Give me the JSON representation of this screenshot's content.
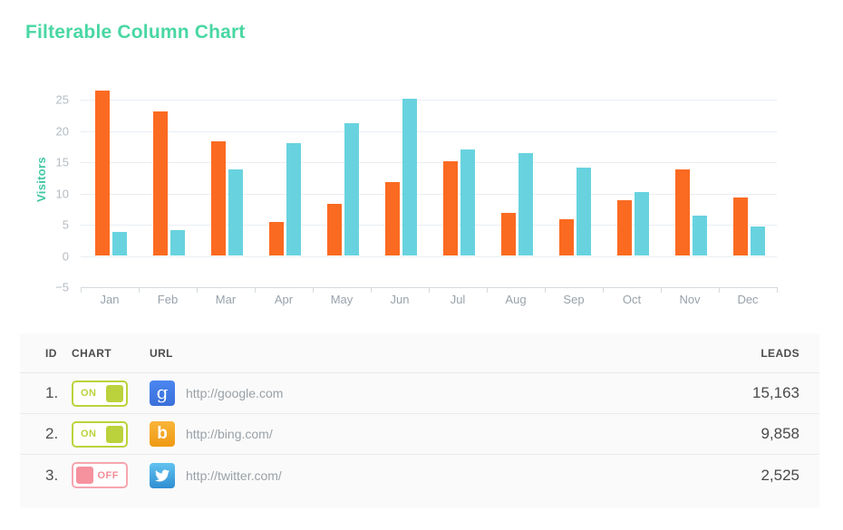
{
  "title": "Filterable Column Chart",
  "colors": {
    "title_accent": "#49d7a3",
    "series_google": "#fb6a21",
    "series_bing": "#68d3df",
    "toggle_on": "#bcd23c",
    "toggle_off": "#f5929e"
  },
  "chart_data": {
    "type": "bar",
    "title": "",
    "xlabel": "",
    "ylabel": "Visitors",
    "categories": [
      "Jan",
      "Feb",
      "Mar",
      "Apr",
      "May",
      "Jun",
      "Jul",
      "Aug",
      "Sep",
      "Oct",
      "Nov",
      "Dec"
    ],
    "series": [
      {
        "key": "google",
        "name": "http://google.com",
        "color": "#fb6a21",
        "values": [
          26.4,
          23.1,
          18.3,
          5.5,
          8.4,
          11.8,
          15.2,
          6.9,
          5.8,
          8.9,
          13.8,
          9.4
        ]
      },
      {
        "key": "bing",
        "name": "http://bing.com/",
        "color": "#68d3df",
        "values": [
          3.8,
          4.1,
          13.9,
          18.0,
          21.3,
          25.1,
          17.0,
          16.5,
          14.1,
          10.2,
          6.5,
          4.7
        ]
      }
    ],
    "ylim": [
      -5,
      27.5
    ],
    "yticks": [
      25,
      20,
      15,
      10,
      5,
      0,
      -5
    ],
    "grid": true,
    "legend": "none"
  },
  "table": {
    "headers": [
      "ID",
      "CHART",
      "URL",
      "LEADS"
    ],
    "rows": [
      {
        "id": "1.",
        "toggle_label": "ON",
        "toggle_state": "on",
        "icon": "google-icon",
        "url": "http://google.com",
        "leads": "15,163"
      },
      {
        "id": "2.",
        "toggle_label": "ON",
        "toggle_state": "on",
        "icon": "bing-icon",
        "url": "http://bing.com/",
        "leads": "9,858"
      },
      {
        "id": "3.",
        "toggle_label": "OFF",
        "toggle_state": "off",
        "icon": "twitter-icon",
        "url": "http://twitter.com/",
        "leads": "2,525"
      }
    ]
  },
  "icons": {
    "google_glyph": "g",
    "bing_glyph": "b",
    "twitter": "twitter-bird"
  }
}
